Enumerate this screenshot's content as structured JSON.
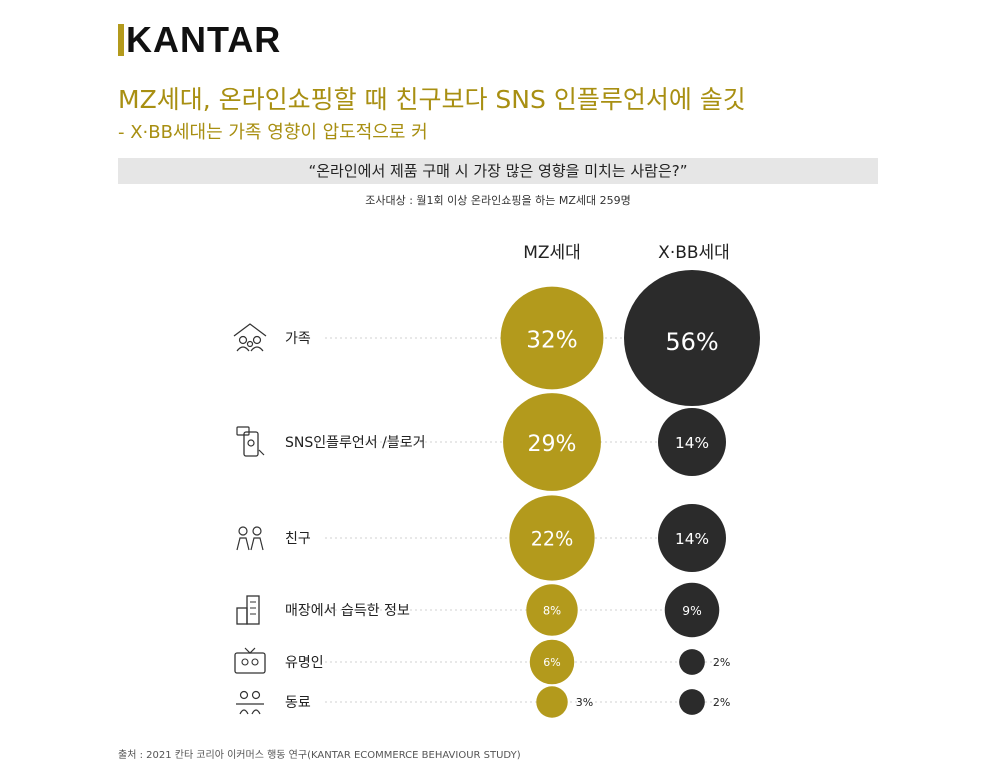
{
  "brand": {
    "logo_text": "KANTAR",
    "accent_color": "#b39a1c"
  },
  "title": "MZ세대, 온라인쇼핑할 때 친구보다 SNS 인플루언서에 솔깃",
  "subtitle": "- X·BB세대는 가족 영향이 압도적으로 커",
  "question": "“온라인에서 제품 구매 시 가장 많은 영향을 미치는 사람은?”",
  "survey_target": "조사대상 : 월1회 이상 온라인쇼핑을 하는 MZ세대 259명",
  "source": "출처 : 2021 칸타 코리아 이커머스 행동 연구(KANTAR ECOMMERCE BEHAVIOUR STUDY)",
  "chart_data": {
    "type": "bubble",
    "unit": "%",
    "categories": [
      {
        "label": "가족",
        "icon": "family-icon"
      },
      {
        "label": "SNS인플루언서 /블로거",
        "icon": "phone-influencer-icon"
      },
      {
        "label": "친구",
        "icon": "friends-icon"
      },
      {
        "label": "매장에서 습득한 정보",
        "icon": "store-icon"
      },
      {
        "label": "유명인",
        "icon": "tv-celebrity-icon"
      },
      {
        "label": "동료",
        "icon": "colleagues-icon"
      }
    ],
    "series": [
      {
        "name": "MZ세대",
        "color": "#b39a1c",
        "values": [
          32,
          29,
          22,
          8,
          6,
          3
        ]
      },
      {
        "name": "X·BB세대",
        "color": "#2b2b2b",
        "values": [
          56,
          14,
          14,
          9,
          2,
          2
        ]
      }
    ]
  }
}
